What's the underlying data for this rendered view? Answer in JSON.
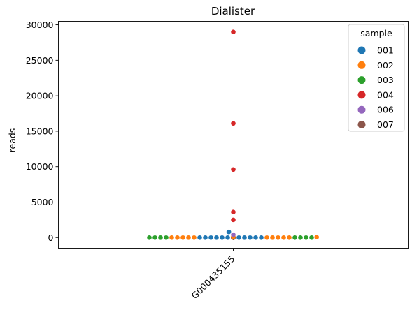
{
  "chart_data": {
    "type": "scatter",
    "subtype": "swarm",
    "title": "Dialister",
    "xlabel": "",
    "ylabel": "reads",
    "categories": [
      "G000435155"
    ],
    "ylim": [
      -1500,
      30500
    ],
    "yticks": [
      0,
      5000,
      10000,
      15000,
      20000,
      25000,
      30000
    ],
    "grid": false,
    "legend": {
      "title": "sample",
      "placement": "top-right"
    },
    "series": [
      {
        "name": "001",
        "color": "#1f77b4",
        "values": [
          0,
          0,
          0,
          0,
          0,
          0,
          0,
          0,
          0,
          0,
          0,
          0,
          800
        ]
      },
      {
        "name": "002",
        "color": "#ff7f0e",
        "values": [
          100,
          50,
          0,
          0,
          0,
          0,
          0,
          0,
          0,
          0,
          0,
          0
        ]
      },
      {
        "name": "003",
        "color": "#2ca02c",
        "values": [
          0,
          0,
          0,
          0,
          0,
          0,
          0,
          0,
          0,
          0,
          0,
          0,
          0,
          0
        ]
      },
      {
        "name": "004",
        "color": "#d62728",
        "values": [
          29000,
          16100,
          9600,
          3600,
          2500
        ]
      },
      {
        "name": "006",
        "color": "#9467bd",
        "values": [
          400
        ]
      },
      {
        "name": "007",
        "color": "#8c564b",
        "values": [
          0,
          0,
          0,
          0,
          0,
          0,
          0,
          0,
          0
        ]
      }
    ]
  }
}
